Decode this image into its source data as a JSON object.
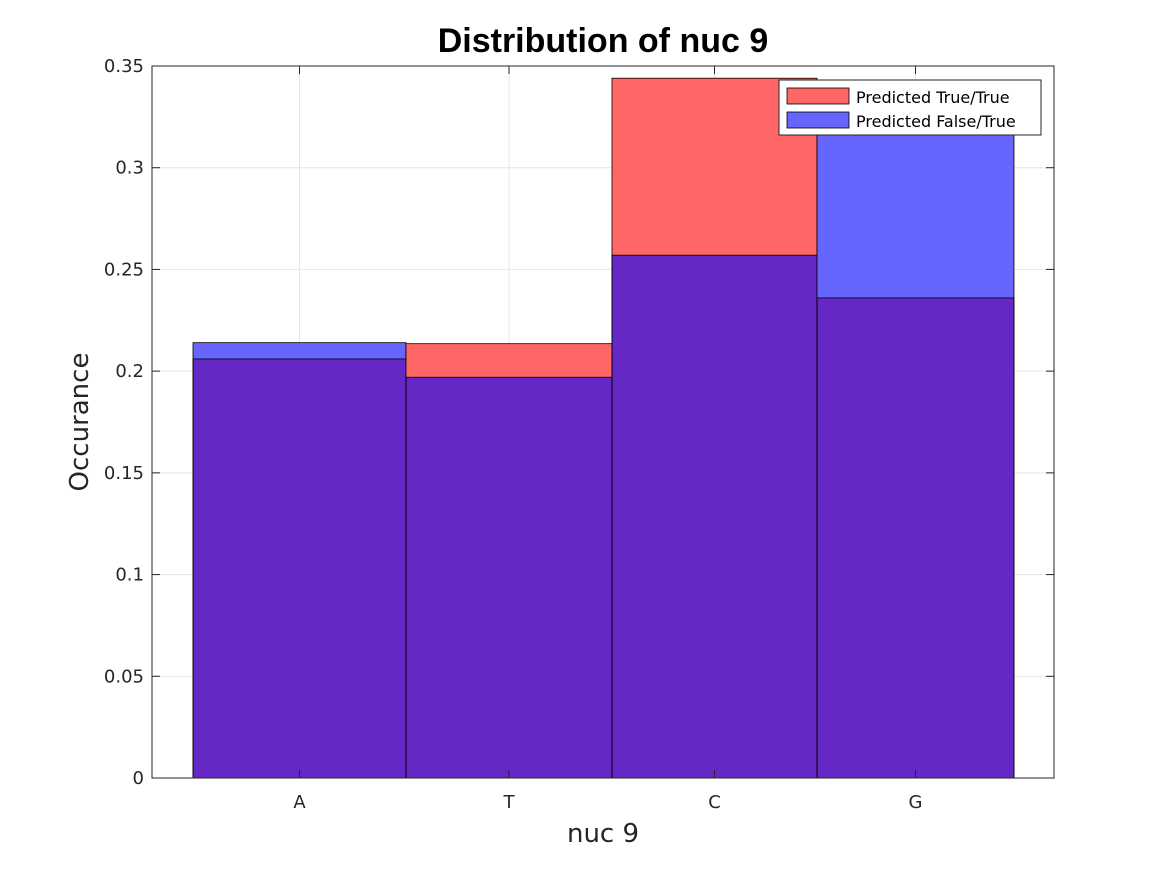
{
  "chart_data": {
    "type": "bar",
    "title": "Distribution of nuc 9",
    "xlabel": "nuc 9",
    "ylabel": "Occurance",
    "categories": [
      "A",
      "T",
      "C",
      "G"
    ],
    "series": [
      {
        "name": "Predicted True/True",
        "values": [
          0.206,
          0.2135,
          0.344,
          0.236
        ],
        "color": "#ff0000"
      },
      {
        "name": "Predicted False/True",
        "values": [
          0.214,
          0.197,
          0.257,
          0.322
        ],
        "color": "#0000ff"
      }
    ],
    "overlap_color": "#6528c4",
    "bar_opacity": 0.6,
    "ylim": [
      0,
      0.35
    ],
    "yticks": [
      "0",
      "0.05",
      "0.1",
      "0.15",
      "0.2",
      "0.25",
      "0.3",
      "0.35"
    ],
    "grid": true,
    "legend_position": "top-right"
  }
}
